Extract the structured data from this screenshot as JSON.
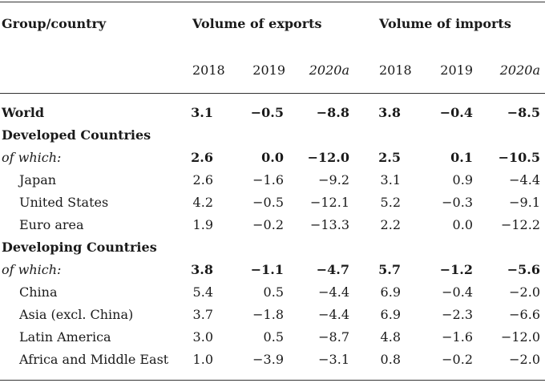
{
  "header": {
    "group_label": "Group/country",
    "exports_label": "Volume of exports",
    "imports_label": "Volume of imports",
    "years": [
      "2018",
      "2019",
      "2020a",
      "2018",
      "2019",
      "2020a"
    ]
  },
  "rows": [
    {
      "label": "World",
      "style": "bold",
      "values": [
        "3.1",
        "−0.5",
        "−8.8",
        "3.8",
        "−0.4",
        "−8.5"
      ]
    },
    {
      "label": "Developed Countries",
      "style": "group",
      "values": []
    },
    {
      "label": "of which:",
      "style": "italic-bold",
      "values": [
        "2.6",
        "0.0",
        "−12.0",
        "2.5",
        "0.1",
        "−10.5"
      ]
    },
    {
      "label": "Japan",
      "style": "indent",
      "values": [
        "2.6",
        "−1.6",
        "−9.2",
        "3.1",
        "0.9",
        "−4.4"
      ]
    },
    {
      "label": "United States",
      "style": "indent",
      "values": [
        "4.2",
        "−0.5",
        "−12.1",
        "5.2",
        "−0.3",
        "−9.1"
      ]
    },
    {
      "label": "Euro area",
      "style": "indent",
      "values": [
        "1.9",
        "−0.2",
        "−13.3",
        "2.2",
        "0.0",
        "−12.2"
      ]
    },
    {
      "label": "Developing Countries",
      "style": "group",
      "values": []
    },
    {
      "label": "of which:",
      "style": "italic-bold",
      "values": [
        "3.8",
        "−1.1",
        "−4.7",
        "5.7",
        "−1.2",
        "−5.6"
      ]
    },
    {
      "label": "China",
      "style": "indent",
      "values": [
        "5.4",
        "0.5",
        "−4.4",
        "6.9",
        "−0.4",
        "−2.0"
      ]
    },
    {
      "label": "Asia (excl. China)",
      "style": "indent",
      "values": [
        "3.7",
        "−1.8",
        "−4.4",
        "6.9",
        "−2.3",
        "−6.6"
      ]
    },
    {
      "label": "Latin America",
      "style": "indent",
      "values": [
        "3.0",
        "0.5",
        "−8.7",
        "4.8",
        "−1.6",
        "−12.0"
      ]
    },
    {
      "label": "Africa and Middle East",
      "style": "indent",
      "values": [
        "1.0",
        "−3.9",
        "−3.1",
        "0.8",
        "−0.2",
        "−2.0"
      ]
    }
  ]
}
